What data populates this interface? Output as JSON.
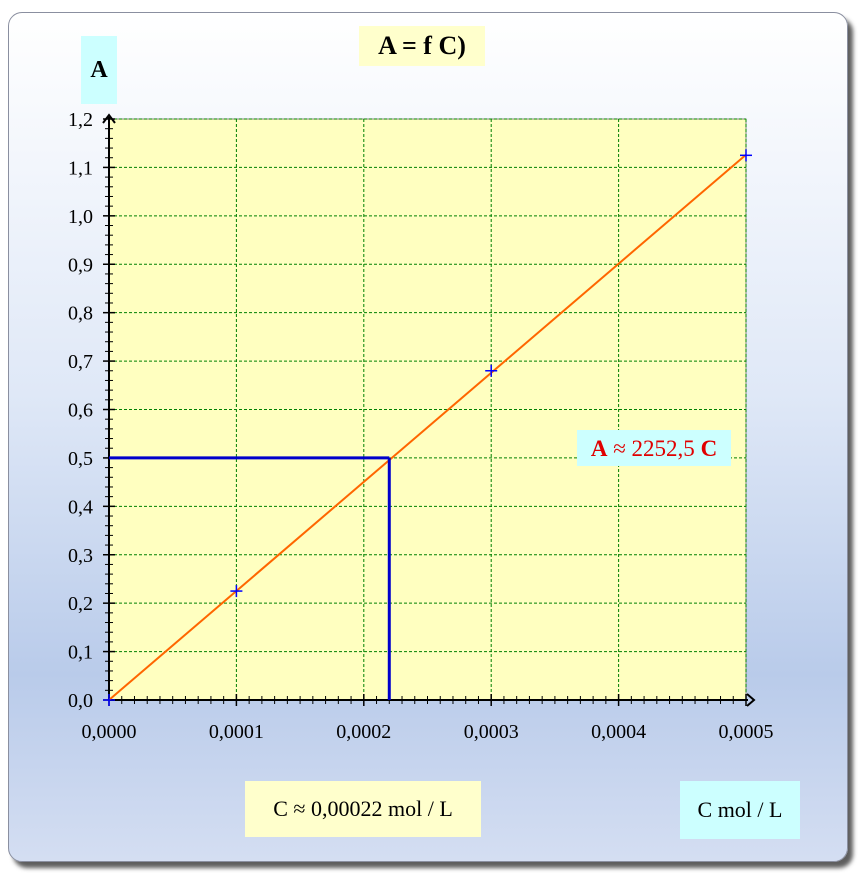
{
  "chart_data": {
    "type": "scatter",
    "title": "A = f  C)",
    "xlabel": "C mol / L",
    "ylabel": "A",
    "xlim": [
      0,
      0.0005
    ],
    "ylim": [
      0,
      1.2
    ],
    "x_ticks": [
      "0,0000",
      "0,0001",
      "0,0002",
      "0,0003",
      "0,0004",
      "0,0005"
    ],
    "y_ticks": [
      "0,0",
      "0,1",
      "0,2",
      "0,3",
      "0,4",
      "0,5",
      "0,6",
      "0,7",
      "0,8",
      "0,9",
      "1,0",
      "1,1",
      "1,2"
    ],
    "grid": true,
    "series": [
      {
        "points": [
          {
            "x": 0,
            "y": 0
          },
          {
            "x": 0.0001,
            "y": 0.225
          },
          {
            "x": 0.0003,
            "y": 0.68
          },
          {
            "x": 0.0005,
            "y": 1.125
          }
        ],
        "marker": "+",
        "color": "#0000ff"
      }
    ],
    "trendline": {
      "slope": 2252.5,
      "color": "#ff6600",
      "equation_label": {
        "prefix": "A",
        "middle": " ≈ 2252,5 ",
        "suffix": "C"
      }
    },
    "projection": {
      "x": 0.00022,
      "y": 0.5,
      "color": "#0000cc"
    },
    "result_label": "C ≈ 0,00022 mol / L"
  },
  "colors": {
    "plot_background": "#ffffc0",
    "grid": "#008000",
    "title_box": "#ffffcc",
    "label_box": "#ccffff",
    "equation_text": "#e00000"
  }
}
